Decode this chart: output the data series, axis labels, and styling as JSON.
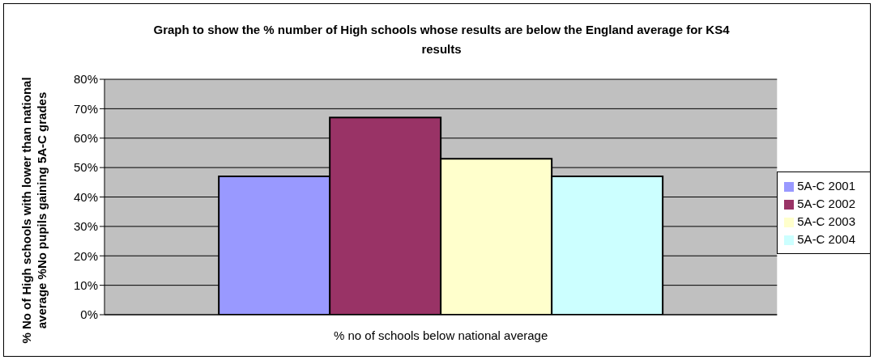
{
  "chart_data": {
    "type": "bar",
    "title": "Graph to show the % number of High schools whose results are below the England average for KS4 results",
    "ylabel": "% No of High schools with lower than national average %No pupils gaining 5A-C grades",
    "categories": [
      "% no of schools below national average"
    ],
    "series": [
      {
        "name": "5A-C 2001",
        "color": "#9999ff",
        "values": [
          47
        ]
      },
      {
        "name": "5A-C 2002",
        "color": "#993366",
        "values": [
          67
        ]
      },
      {
        "name": "5A-C 2003",
        "color": "#ffffcc",
        "values": [
          53
        ]
      },
      {
        "name": "5A-C 2004",
        "color": "#ccffff",
        "values": [
          47
        ]
      }
    ],
    "ylim": [
      0,
      80
    ],
    "yticks": [
      {
        "value": 0,
        "label": "0%"
      },
      {
        "value": 10,
        "label": "10%"
      },
      {
        "value": 20,
        "label": "20%"
      },
      {
        "value": 30,
        "label": "30%"
      },
      {
        "value": 40,
        "label": "40%"
      },
      {
        "value": 50,
        "label": "50%"
      },
      {
        "value": 60,
        "label": "60%"
      },
      {
        "value": 70,
        "label": "70%"
      },
      {
        "value": 80,
        "label": "80%"
      }
    ],
    "grid": "y",
    "legend": "right"
  }
}
